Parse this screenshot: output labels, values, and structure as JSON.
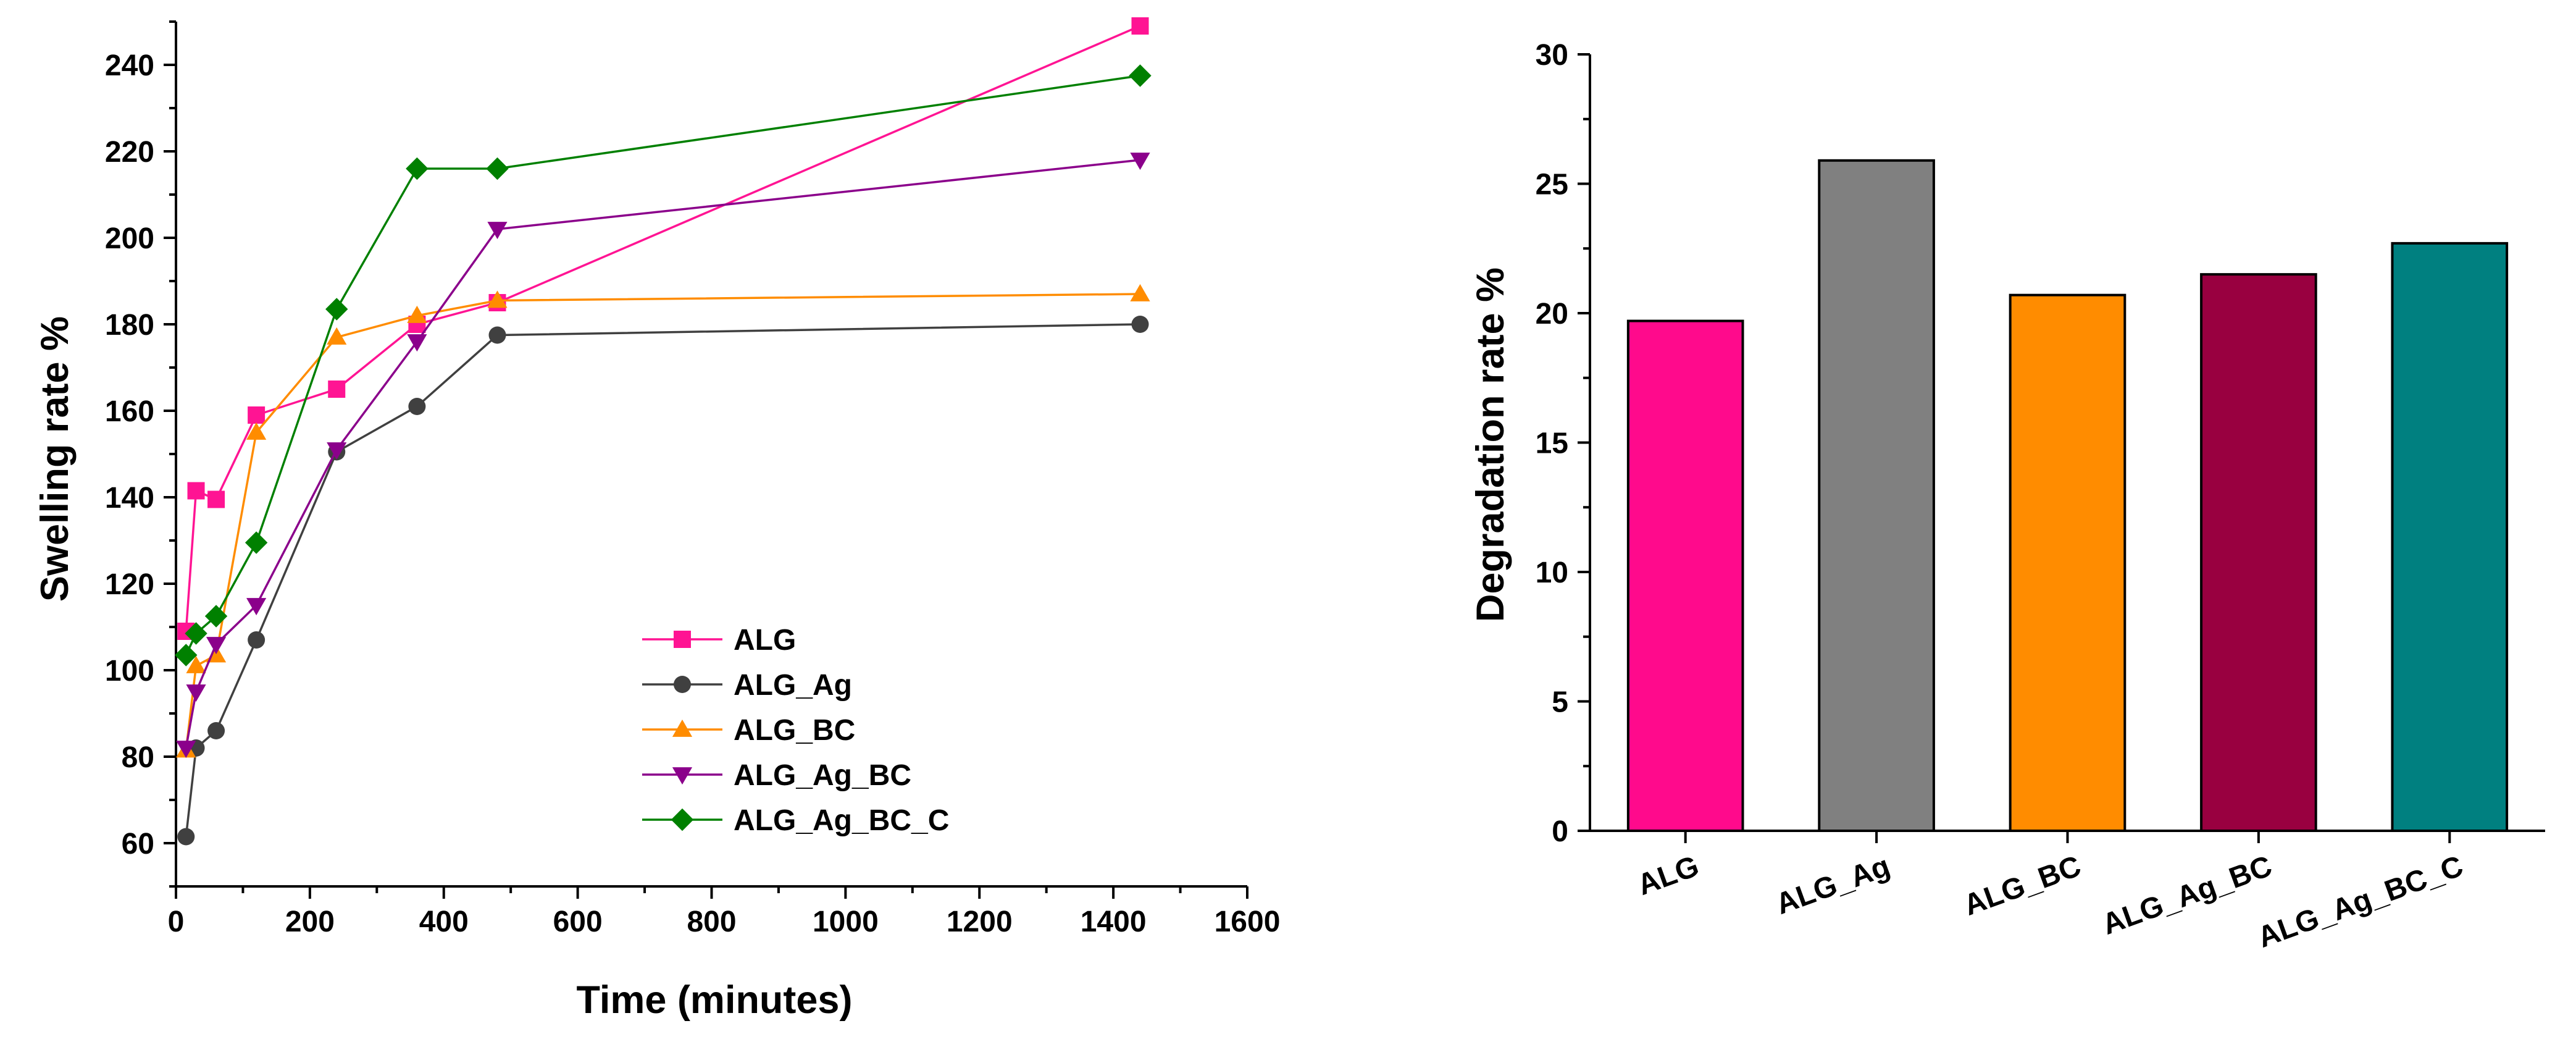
{
  "chart_data": [
    {
      "type": "line",
      "title": "",
      "xlabel": "Time (minutes)",
      "ylabel": "Swelling rate %",
      "xlim": [
        0,
        1600
      ],
      "ylim": [
        50,
        250
      ],
      "xticks": [
        0,
        200,
        400,
        600,
        800,
        1000,
        1200,
        1400,
        1600
      ],
      "yticks": [
        60,
        80,
        100,
        120,
        140,
        160,
        180,
        200,
        220,
        240
      ],
      "legend_position": "bottom-right",
      "x": [
        15,
        30,
        60,
        120,
        240,
        360,
        480,
        1440
      ],
      "series": [
        {
          "name": "ALG",
          "color": "#ff1493",
          "marker": "square",
          "values": [
            109,
            141.5,
            139.5,
            159,
            165,
            180,
            185,
            249
          ]
        },
        {
          "name": "ALG_Ag",
          "color": "#404040",
          "marker": "circle",
          "values": [
            61.5,
            82,
            86,
            107,
            150.5,
            161,
            177.5,
            180
          ]
        },
        {
          "name": "ALG_BC",
          "color": "#ff8c00",
          "marker": "triangle-up",
          "values": [
            81.5,
            101,
            103.5,
            155,
            177,
            182,
            185.5,
            187
          ]
        },
        {
          "name": "ALG_Ag_BC",
          "color": "#8b008b",
          "marker": "triangle-down",
          "values": [
            82,
            95,
            106,
            115,
            151,
            176,
            202,
            218
          ]
        },
        {
          "name": "ALG_Ag_BC_C",
          "color": "#008000",
          "marker": "diamond",
          "values": [
            103.5,
            108.5,
            112.5,
            129.5,
            183.5,
            216,
            216,
            237.5
          ]
        }
      ]
    },
    {
      "type": "bar",
      "title": "",
      "xlabel": "",
      "ylabel": "Degradation rate %",
      "ylim": [
        0,
        30
      ],
      "yticks": [
        0,
        5,
        10,
        15,
        20,
        25,
        30
      ],
      "categories": [
        "ALG",
        "ALG_Ag",
        "ALG_BC",
        "ALG_Ag_BC",
        "ALG_Ag_BC_C"
      ],
      "values": [
        19.7,
        25.9,
        20.7,
        21.5,
        22.7
      ],
      "colors": [
        "#ff0a8c",
        "#808080",
        "#ff8c00",
        "#990040",
        "#008080"
      ]
    }
  ]
}
